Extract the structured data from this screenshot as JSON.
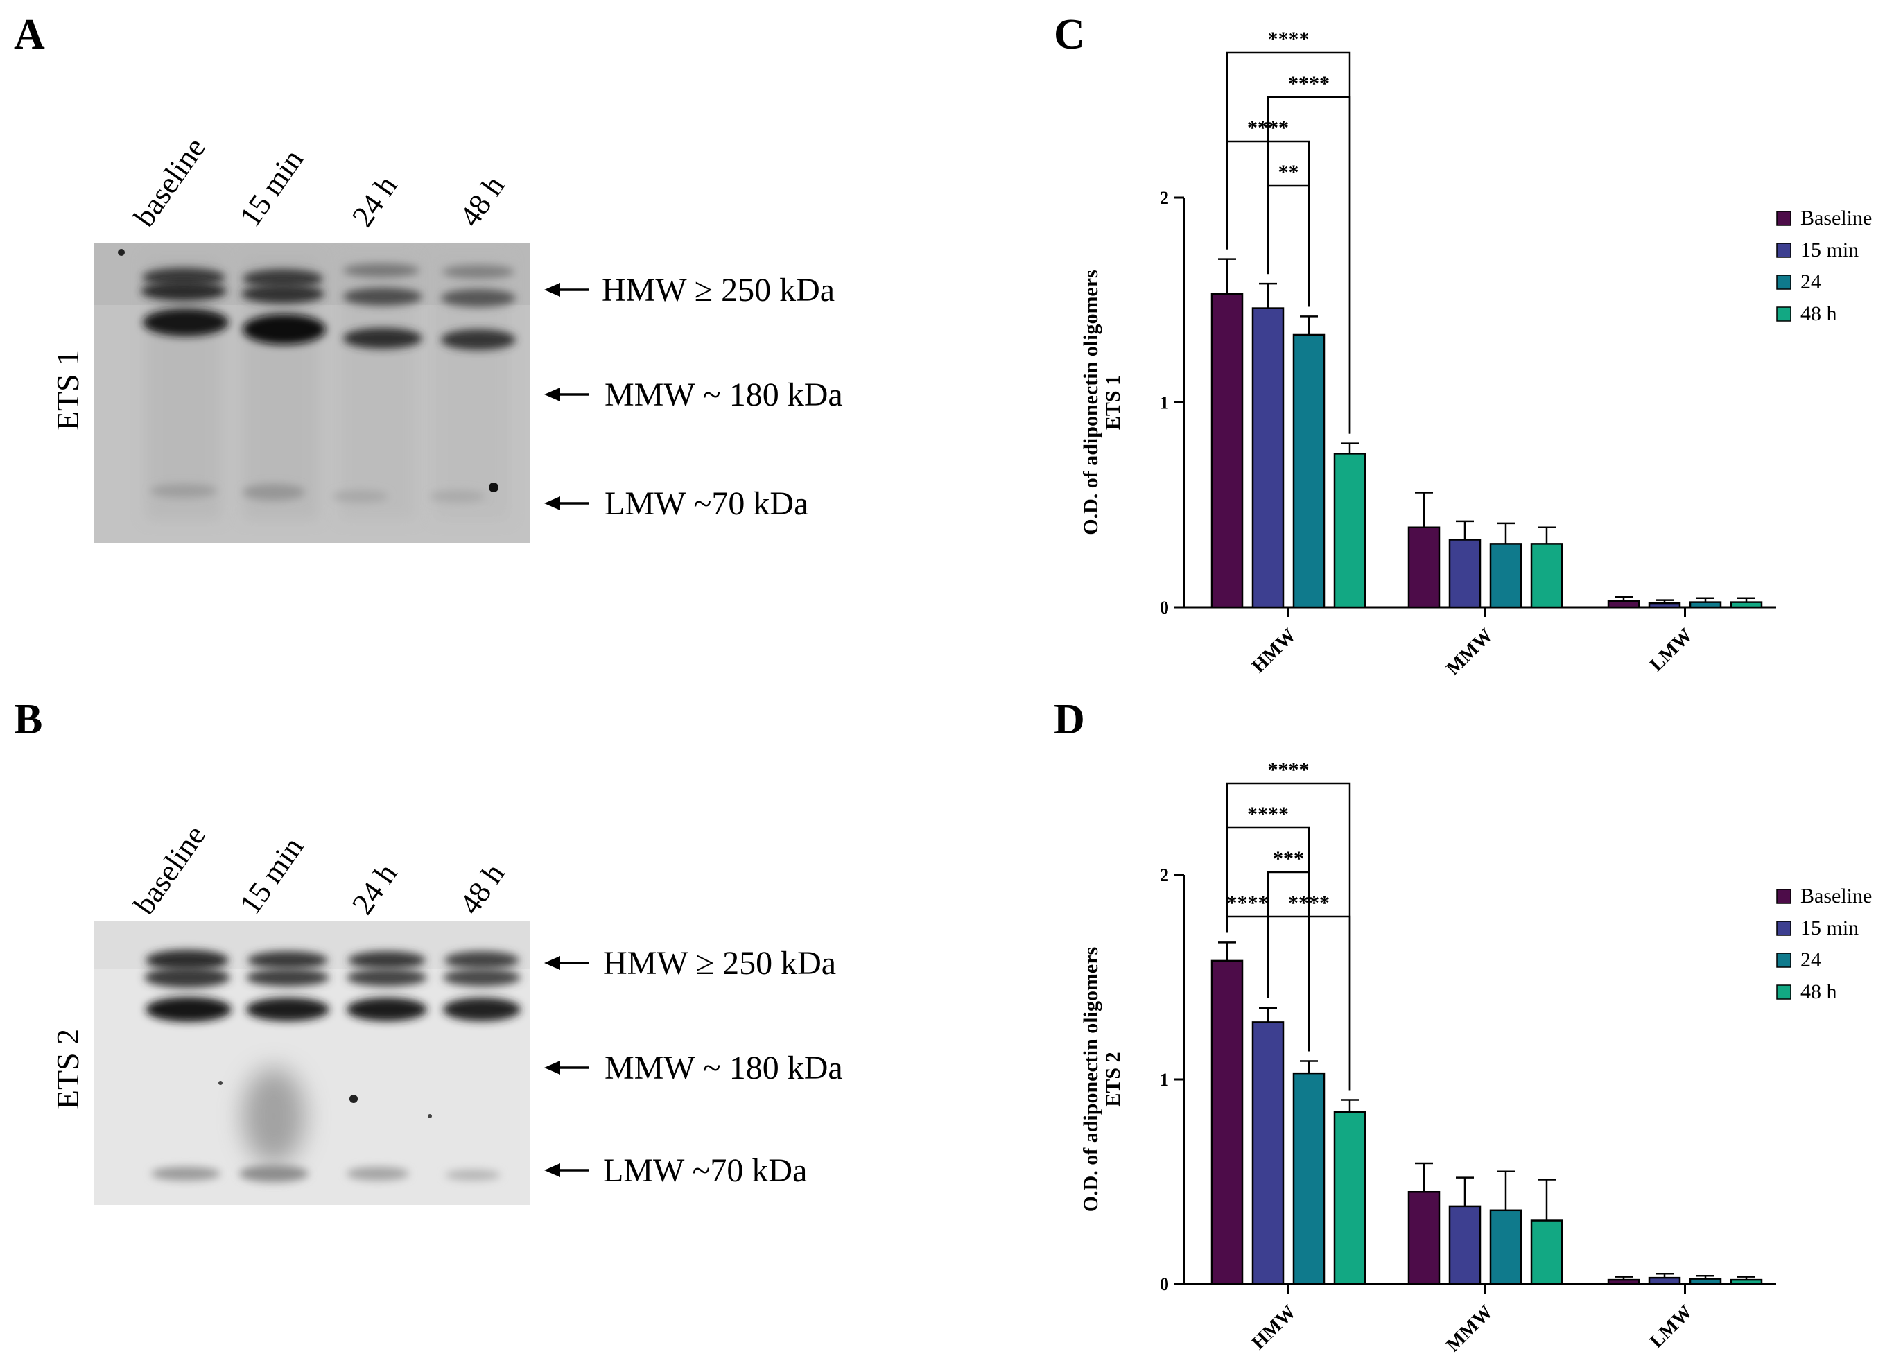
{
  "panels": {
    "A": {
      "letter": "A",
      "blot_label": "ETS 1",
      "lanes": [
        "baseline",
        "15 min",
        "24 h",
        "48 h"
      ],
      "markers": [
        "HMW ≥ 250 kDa",
        "MMW ~ 180 kDa",
        "LMW ~70 kDa"
      ]
    },
    "B": {
      "letter": "B",
      "blot_label": "ETS 2",
      "lanes": [
        "baseline",
        "15 min",
        "24 h",
        "48 h"
      ],
      "markers": [
        "HMW ≥ 250 kDa",
        "MMW ~ 180 kDa",
        "LMW ~70 kDa"
      ]
    }
  },
  "colors": {
    "Baseline": "#4d0c49",
    "15 min": "#3d3f90",
    "24": "#0f7a8c",
    "48 h": "#12a883"
  },
  "chart_data": [
    {
      "panel": "C",
      "type": "bar",
      "categories": [
        "HMW",
        "MMW",
        "LMW"
      ],
      "ylabel_line1": "O.D. of adiponectin oligomers",
      "ylabel_line2": "ETS 1",
      "ylim": [
        0,
        2
      ],
      "yticks": [
        0,
        1,
        2
      ],
      "legend_position": "right",
      "series": [
        {
          "name": "Baseline",
          "values": [
            1.53,
            0.39,
            0.03
          ],
          "errors": [
            0.17,
            0.17,
            0.02
          ]
        },
        {
          "name": "15 min",
          "values": [
            1.46,
            0.33,
            0.02
          ],
          "errors": [
            0.12,
            0.09,
            0.015
          ]
        },
        {
          "name": "24",
          "values": [
            1.33,
            0.31,
            0.025
          ],
          "errors": [
            0.09,
            0.1,
            0.02
          ]
        },
        {
          "name": "48 h",
          "values": [
            0.75,
            0.31,
            0.025
          ],
          "errors": [
            0.05,
            0.08,
            0.02
          ]
        }
      ],
      "significance": [
        {
          "category": "HMW",
          "from": 0,
          "to": 3,
          "label": "****",
          "level": 4
        },
        {
          "category": "HMW",
          "from": 1,
          "to": 3,
          "label": "****",
          "level": 3
        },
        {
          "category": "HMW",
          "from": 0,
          "to": 2,
          "label": "****",
          "level": 2
        },
        {
          "category": "HMW",
          "from": 1,
          "to": 2,
          "label": "**",
          "level": 1
        }
      ]
    },
    {
      "panel": "D",
      "type": "bar",
      "categories": [
        "HMW",
        "MMW",
        "LMW"
      ],
      "ylabel_line1": "O.D. of adiponectin oligomers",
      "ylabel_line2": "ETS 2",
      "ylim": [
        0,
        2
      ],
      "yticks": [
        0,
        1,
        2
      ],
      "legend_position": "right",
      "series": [
        {
          "name": "Baseline",
          "values": [
            1.58,
            0.45,
            0.02
          ],
          "errors": [
            0.09,
            0.14,
            0.015
          ]
        },
        {
          "name": "15 min",
          "values": [
            1.28,
            0.38,
            0.03
          ],
          "errors": [
            0.07,
            0.14,
            0.02
          ]
        },
        {
          "name": "24",
          "values": [
            1.03,
            0.36,
            0.025
          ],
          "errors": [
            0.06,
            0.19,
            0.015
          ]
        },
        {
          "name": "48 h",
          "values": [
            0.84,
            0.31,
            0.02
          ],
          "errors": [
            0.06,
            0.2,
            0.015
          ]
        }
      ],
      "significance": [
        {
          "category": "HMW",
          "from": 0,
          "to": 3,
          "label": "****",
          "level": 4
        },
        {
          "category": "HMW",
          "from": 0,
          "to": 2,
          "label": "****",
          "level": 3
        },
        {
          "category": "HMW",
          "from": 1,
          "to": 2,
          "label": "***",
          "level": 2
        },
        {
          "category": "HMW",
          "from": 0,
          "to": 1,
          "label": "****",
          "level": 1
        },
        {
          "category": "HMW",
          "from": 1,
          "to": 3,
          "label": "****",
          "level": 1
        }
      ]
    }
  ]
}
